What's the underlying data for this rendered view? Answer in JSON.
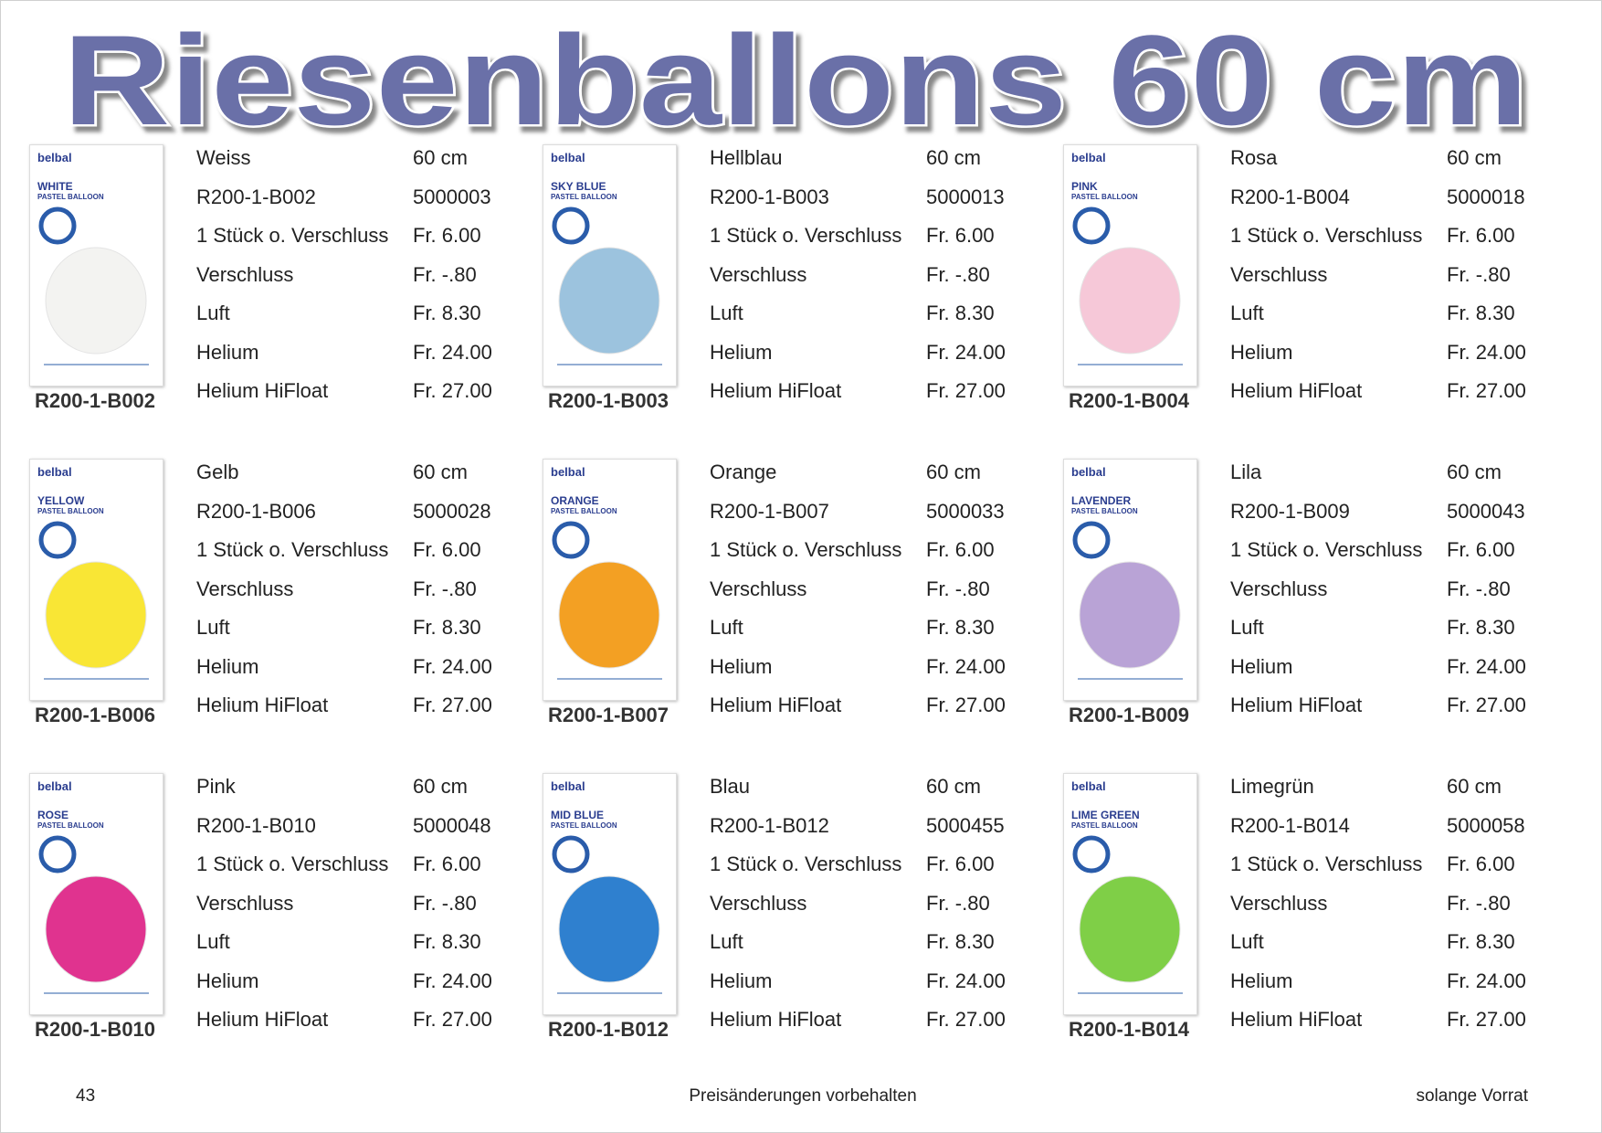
{
  "header": {
    "title": "Riesenballons 60 cm"
  },
  "products": [
    {
      "brand": "belbal",
      "color_name": "WHITE",
      "kind": "PASTEL BALLOON",
      "caption": "R200-1-B002",
      "balloon_color": "#f3f3f1",
      "rows": [
        [
          "Weiss",
          "60 cm"
        ],
        [
          "R200-1-B002",
          "5000003"
        ],
        [
          "1 Stück o. Verschluss",
          "Fr. 6.00"
        ],
        [
          "Verschluss",
          "Fr. -.80"
        ],
        [
          "Luft",
          "Fr. 8.30"
        ],
        [
          "Helium",
          "Fr. 24.00"
        ],
        [
          "Helium HiFloat",
          "Fr. 27.00"
        ]
      ]
    },
    {
      "brand": "belbal",
      "color_name": "SKY BLUE",
      "kind": "PASTEL BALLOON",
      "caption": "R200-1-B003",
      "balloon_color": "#9cc3de",
      "rows": [
        [
          "Hellblau",
          "60 cm"
        ],
        [
          "R200-1-B003",
          "5000013"
        ],
        [
          "1 Stück o. Verschluss",
          "Fr. 6.00"
        ],
        [
          "Verschluss",
          "Fr. -.80"
        ],
        [
          "Luft",
          "Fr. 8.30"
        ],
        [
          "Helium",
          "Fr. 24.00"
        ],
        [
          "Helium HiFloat",
          "Fr. 27.00"
        ]
      ]
    },
    {
      "brand": "belbal",
      "color_name": "PINK",
      "kind": "PASTEL BALLOON",
      "caption": "R200-1-B004",
      "balloon_color": "#f6c8d8",
      "rows": [
        [
          "Rosa",
          "60 cm"
        ],
        [
          "R200-1-B004",
          "5000018"
        ],
        [
          "1 Stück o. Verschluss",
          "Fr. 6.00"
        ],
        [
          "Verschluss",
          "Fr. -.80"
        ],
        [
          "Luft",
          "Fr. 8.30"
        ],
        [
          "Helium",
          "Fr. 24.00"
        ],
        [
          "Helium HiFloat",
          "Fr. 27.00"
        ]
      ]
    },
    {
      "brand": "belbal",
      "color_name": "YELLOW",
      "kind": "PASTEL BALLOON",
      "caption": "R200-1-B006",
      "balloon_color": "#f9e635",
      "rows": [
        [
          "Gelb",
          "60 cm"
        ],
        [
          "R200-1-B006",
          "5000028"
        ],
        [
          "1 Stück o. Verschluss",
          "Fr. 6.00"
        ],
        [
          "Verschluss",
          "Fr. -.80"
        ],
        [
          "Luft",
          "Fr. 8.30"
        ],
        [
          "Helium",
          "Fr. 24.00"
        ],
        [
          "Helium HiFloat",
          "Fr. 27.00"
        ]
      ]
    },
    {
      "brand": "belbal",
      "color_name": "ORANGE",
      "kind": "PASTEL BALLOON",
      "caption": "R200-1-B007",
      "balloon_color": "#f3a023",
      "rows": [
        [
          "Orange",
          "60 cm"
        ],
        [
          "R200-1-B007",
          "5000033"
        ],
        [
          "1 Stück o. Verschluss",
          "Fr. 6.00"
        ],
        [
          "Verschluss",
          "Fr. -.80"
        ],
        [
          "Luft",
          "Fr. 8.30"
        ],
        [
          "Helium",
          "Fr. 24.00"
        ],
        [
          "Helium HiFloat",
          "Fr. 27.00"
        ]
      ]
    },
    {
      "brand": "belbal",
      "color_name": "LAVENDER",
      "kind": "PASTEL BALLOON",
      "caption": "R200-1-B009",
      "balloon_color": "#b9a3d6",
      "rows": [
        [
          "Lila",
          "60 cm"
        ],
        [
          "R200-1-B009",
          "5000043"
        ],
        [
          "1 Stück o. Verschluss",
          "Fr. 6.00"
        ],
        [
          "Verschluss",
          "Fr. -.80"
        ],
        [
          "Luft",
          "Fr. 8.30"
        ],
        [
          "Helium",
          "Fr. 24.00"
        ],
        [
          "Helium HiFloat",
          "Fr. 27.00"
        ]
      ]
    },
    {
      "brand": "belbal",
      "color_name": "ROSE",
      "kind": "PASTEL BALLOON",
      "caption": "R200-1-B010",
      "balloon_color": "#e0338f",
      "rows": [
        [
          "Pink",
          "60 cm"
        ],
        [
          "R200-1-B010",
          "5000048"
        ],
        [
          "1 Stück o. Verschluss",
          "Fr. 6.00"
        ],
        [
          "Verschluss",
          "Fr. -.80"
        ],
        [
          "Luft",
          "Fr. 8.30"
        ],
        [
          "Helium",
          "Fr. 24.00"
        ],
        [
          "Helium HiFloat",
          "Fr. 27.00"
        ]
      ]
    },
    {
      "brand": "belbal",
      "color_name": "MID BLUE",
      "kind": "PASTEL BALLOON",
      "caption": "R200-1-B012",
      "balloon_color": "#2f80cf",
      "rows": [
        [
          "Blau",
          "60 cm"
        ],
        [
          "R200-1-B012",
          "5000455"
        ],
        [
          "1 Stück o. Verschluss",
          "Fr. 6.00"
        ],
        [
          "Verschluss",
          "Fr. -.80"
        ],
        [
          "Luft",
          "Fr. 8.30"
        ],
        [
          "Helium",
          "Fr. 24.00"
        ],
        [
          "Helium HiFloat",
          "Fr. 27.00"
        ]
      ]
    },
    {
      "brand": "belbal",
      "color_name": "LIME GREEN",
      "kind": "PASTEL BALLOON",
      "caption": "R200-1-B014",
      "balloon_color": "#7fcf47",
      "rows": [
        [
          "Limegrün",
          "60 cm"
        ],
        [
          "R200-1-B014",
          "5000058"
        ],
        [
          "1 Stück o. Verschluss",
          "Fr. 6.00"
        ],
        [
          "Verschluss",
          "Fr. -.80"
        ],
        [
          "Luft",
          "Fr. 8.30"
        ],
        [
          "Helium",
          "Fr. 24.00"
        ],
        [
          "Helium HiFloat",
          "Fr. 27.00"
        ]
      ]
    }
  ],
  "footer": {
    "page": "43",
    "center": "Preisänderungen vorbehalten",
    "right": "solange Vorrat"
  }
}
